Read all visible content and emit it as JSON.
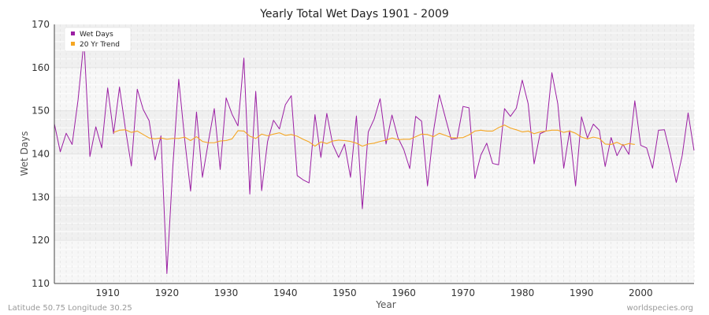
{
  "colors": {
    "band_light": "#f7f7f7",
    "band_dark": "#f0f0f0",
    "wet_days": "#9b1fa3",
    "trend": "#f5a623",
    "axis": "#444444"
  },
  "footer": {
    "left": "Latitude 50.75 Longitude 30.25",
    "right": "worldspecies.org"
  },
  "chart_data": {
    "type": "line",
    "title": "Yearly Total Wet Days 1901 - 2009",
    "xlabel": "Year",
    "ylabel": "Wet Days",
    "xlim": [
      1901,
      2009
    ],
    "ylim": [
      110,
      170
    ],
    "x_ticks": [
      1910,
      1920,
      1930,
      1940,
      1950,
      1960,
      1970,
      1980,
      1990,
      2000
    ],
    "y_ticks": [
      110,
      120,
      130,
      140,
      150,
      160,
      170
    ],
    "grid": true,
    "legend": {
      "position": "top-left",
      "entries": [
        "Wet Days",
        "20 Yr Trend"
      ]
    },
    "series": [
      {
        "name": "Wet Days",
        "color": "#9b1fa3",
        "start_year": 1901,
        "values": [
          147,
          140.5,
          144.8,
          142.2,
          152.5,
          166.3,
          139.4,
          146.3,
          141.4,
          155.3,
          144.7,
          155.5,
          145.8,
          137.2,
          155,
          150.3,
          147.7,
          138.6,
          144.2,
          112.3,
          137,
          157.3,
          143.4,
          131.4,
          149.7,
          134.6,
          142.8,
          150.5,
          136.4,
          153,
          149.2,
          146.5,
          162.2,
          130.7,
          154.5,
          131.5,
          142.9,
          147.8,
          145.8,
          151.4,
          153.5,
          135,
          134,
          133.3,
          149.1,
          139.2,
          149.4,
          142.2,
          139.2,
          142.3,
          134.6,
          148.8,
          127.3,
          145.1,
          148.1,
          152.8,
          142.3,
          149,
          143.8,
          141,
          136.6,
          148.7,
          147.6,
          132.6,
          145.2,
          153.7,
          148.5,
          143.4,
          143.6,
          151,
          150.7,
          134.3,
          139.7,
          142.5,
          137.8,
          137.5,
          150.5,
          148.7,
          150.6,
          157.1,
          151.6,
          137.7,
          144.7,
          145.3,
          158.8,
          151.6,
          136.7,
          145.4,
          132.6,
          148.6,
          143.7,
          146.9,
          145.5,
          137.1,
          143.8,
          139.6,
          142.2,
          139.9,
          152.3,
          142,
          141.4,
          136.7,
          145.5,
          145.6,
          139.9,
          133.4,
          139.6,
          149.5,
          140.8
        ]
      },
      {
        "name": "20 Yr Trend",
        "color": "#f5a623",
        "start_year": 1911,
        "values": [
          145,
          145.5,
          145.6,
          145,
          145.3,
          144.5,
          143.7,
          143.5,
          143.7,
          143.4,
          143.6,
          143.6,
          143.9,
          143.1,
          144,
          142.9,
          142.6,
          142.6,
          143,
          143.1,
          143.5,
          145.4,
          145.3,
          144.1,
          143.6,
          144.6,
          144.2,
          144.6,
          144.9,
          144.3,
          144.5,
          144.1,
          143.4,
          142.8,
          141.8,
          142.8,
          142.4,
          143,
          143.2,
          143.1,
          142.9,
          142.5,
          141.8,
          142.3,
          142.5,
          142.9,
          143.2,
          143.7,
          143.3,
          143.4,
          143.4,
          144,
          144.6,
          144.5,
          144,
          144.8,
          144.3,
          143.8,
          143.7,
          143.8,
          144.4,
          145.3,
          145.5,
          145.3,
          145.3,
          146.1,
          146.7,
          146,
          145.6,
          145.1,
          145.3,
          144.7,
          145.1,
          145.3,
          145.5,
          145.5,
          145,
          145.3,
          144.8,
          143.9,
          143.5,
          143.9,
          143.6,
          142.3,
          142.2,
          142.7,
          142,
          142.4,
          142.2
        ]
      }
    ]
  }
}
